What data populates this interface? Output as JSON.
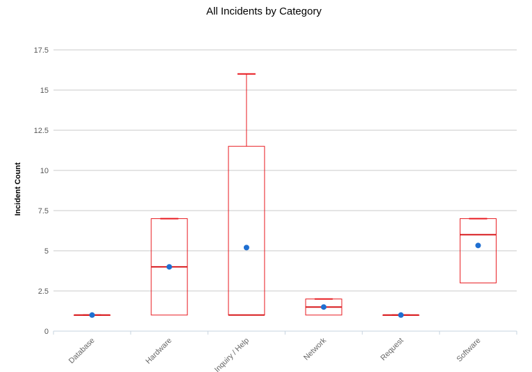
{
  "chart_data": {
    "type": "box",
    "title": "All Incidents by Category",
    "xlabel": "",
    "ylabel": "Incident Count",
    "ylim": [
      0,
      17.5
    ],
    "yticks": [
      "0",
      "2.5",
      "5",
      "7.5",
      "10",
      "12.5",
      "15",
      "17.5"
    ],
    "grid": true,
    "categories": [
      "Database",
      "Hardware",
      "Inquiry / Help",
      "Network",
      "Request",
      "Software"
    ],
    "boxes": [
      {
        "min": 1,
        "q1": 1,
        "median": 1,
        "q3": 1,
        "max": 1,
        "mean": 1
      },
      {
        "min": 1,
        "q1": 1,
        "median": 4,
        "q3": 7,
        "max": 7,
        "mean": 4
      },
      {
        "min": 1,
        "q1": 1,
        "median": 1,
        "q3": 11.5,
        "max": 16,
        "mean": 5.2
      },
      {
        "min": 1,
        "q1": 1,
        "median": 1.5,
        "q3": 2,
        "max": 2,
        "mean": 1.5
      },
      {
        "min": 1,
        "q1": 1,
        "median": 1,
        "q3": 1,
        "max": 1,
        "mean": 1
      },
      {
        "min": 3,
        "q1": 3,
        "median": 6,
        "q3": 7,
        "max": 7,
        "mean": 5.33
      }
    ],
    "colors": {
      "box": "#e8191f",
      "median": "#d7191c",
      "mean": "#1f6fd1",
      "grid": "#c8c8c8",
      "axis": "#c6d3df"
    }
  }
}
